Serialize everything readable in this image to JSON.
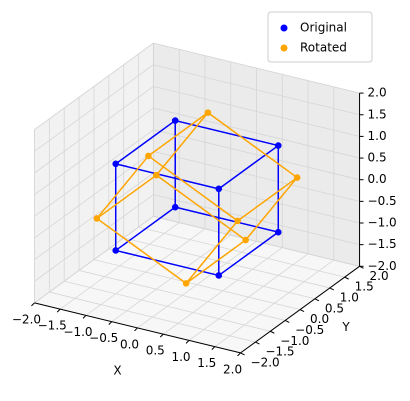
{
  "chart_data": {
    "type": "scatter3d",
    "xlabel": "X",
    "ylabel": "Y",
    "xlim": [
      -2,
      2
    ],
    "ylim": [
      -2,
      2
    ],
    "zlim": [
      -2,
      2
    ],
    "xticks": [
      {
        "value": -2,
        "label": "−2.0"
      },
      {
        "value": -1.5,
        "label": "−1.5"
      },
      {
        "value": -1,
        "label": "−1.0"
      },
      {
        "value": -0.5,
        "label": "−0.5"
      },
      {
        "value": 0,
        "label": "0.0"
      },
      {
        "value": 0.5,
        "label": "0.5"
      },
      {
        "value": 1,
        "label": "1.0"
      },
      {
        "value": 1.5,
        "label": "1.5"
      },
      {
        "value": 2,
        "label": "2.0"
      }
    ],
    "yticks": [
      {
        "value": -2,
        "label": "−2.0"
      },
      {
        "value": -1.5,
        "label": "−1.5"
      },
      {
        "value": -1,
        "label": "−1.0"
      },
      {
        "value": -0.5,
        "label": "−0.5"
      },
      {
        "value": 0,
        "label": "0.0"
      },
      {
        "value": 0.5,
        "label": "0.5"
      },
      {
        "value": 1,
        "label": "1.0"
      },
      {
        "value": 1.5,
        "label": "1.5"
      },
      {
        "value": 2,
        "label": "2.0"
      }
    ],
    "zticks": [
      {
        "value": -2,
        "label": "−2.0"
      },
      {
        "value": -1.5,
        "label": "−1.5"
      },
      {
        "value": -1,
        "label": "−1.0"
      },
      {
        "value": -0.5,
        "label": "−0.5"
      },
      {
        "value": 0,
        "label": "0.0"
      },
      {
        "value": 0.5,
        "label": "0.5"
      },
      {
        "value": 1,
        "label": "1.0"
      },
      {
        "value": 1.5,
        "label": "1.5"
      },
      {
        "value": 2,
        "label": "2.0"
      }
    ],
    "grid": true,
    "legend": "upper right",
    "series": [
      {
        "name": "Original",
        "color": "#0000ff",
        "x": [
          -1,
          -1,
          -1,
          -1,
          1,
          1,
          1,
          1
        ],
        "y": [
          -1,
          -1,
          1,
          1,
          -1,
          -1,
          1,
          1
        ],
        "z": [
          -1,
          1,
          -1,
          1,
          -1,
          1,
          -1,
          1
        ]
      },
      {
        "name": "Rotated",
        "color": "#ffa500",
        "x": [
          -1.366,
          -0.366,
          -1.366,
          -0.366,
          0.366,
          1.366,
          0.366,
          1.366
        ],
        "y": [
          -1,
          -1,
          1,
          1,
          -1,
          -1,
          1,
          1
        ],
        "z": [
          -0.366,
          1.366,
          -0.366,
          1.366,
          -1.366,
          0.366,
          -1.366,
          0.366
        ]
      }
    ]
  }
}
